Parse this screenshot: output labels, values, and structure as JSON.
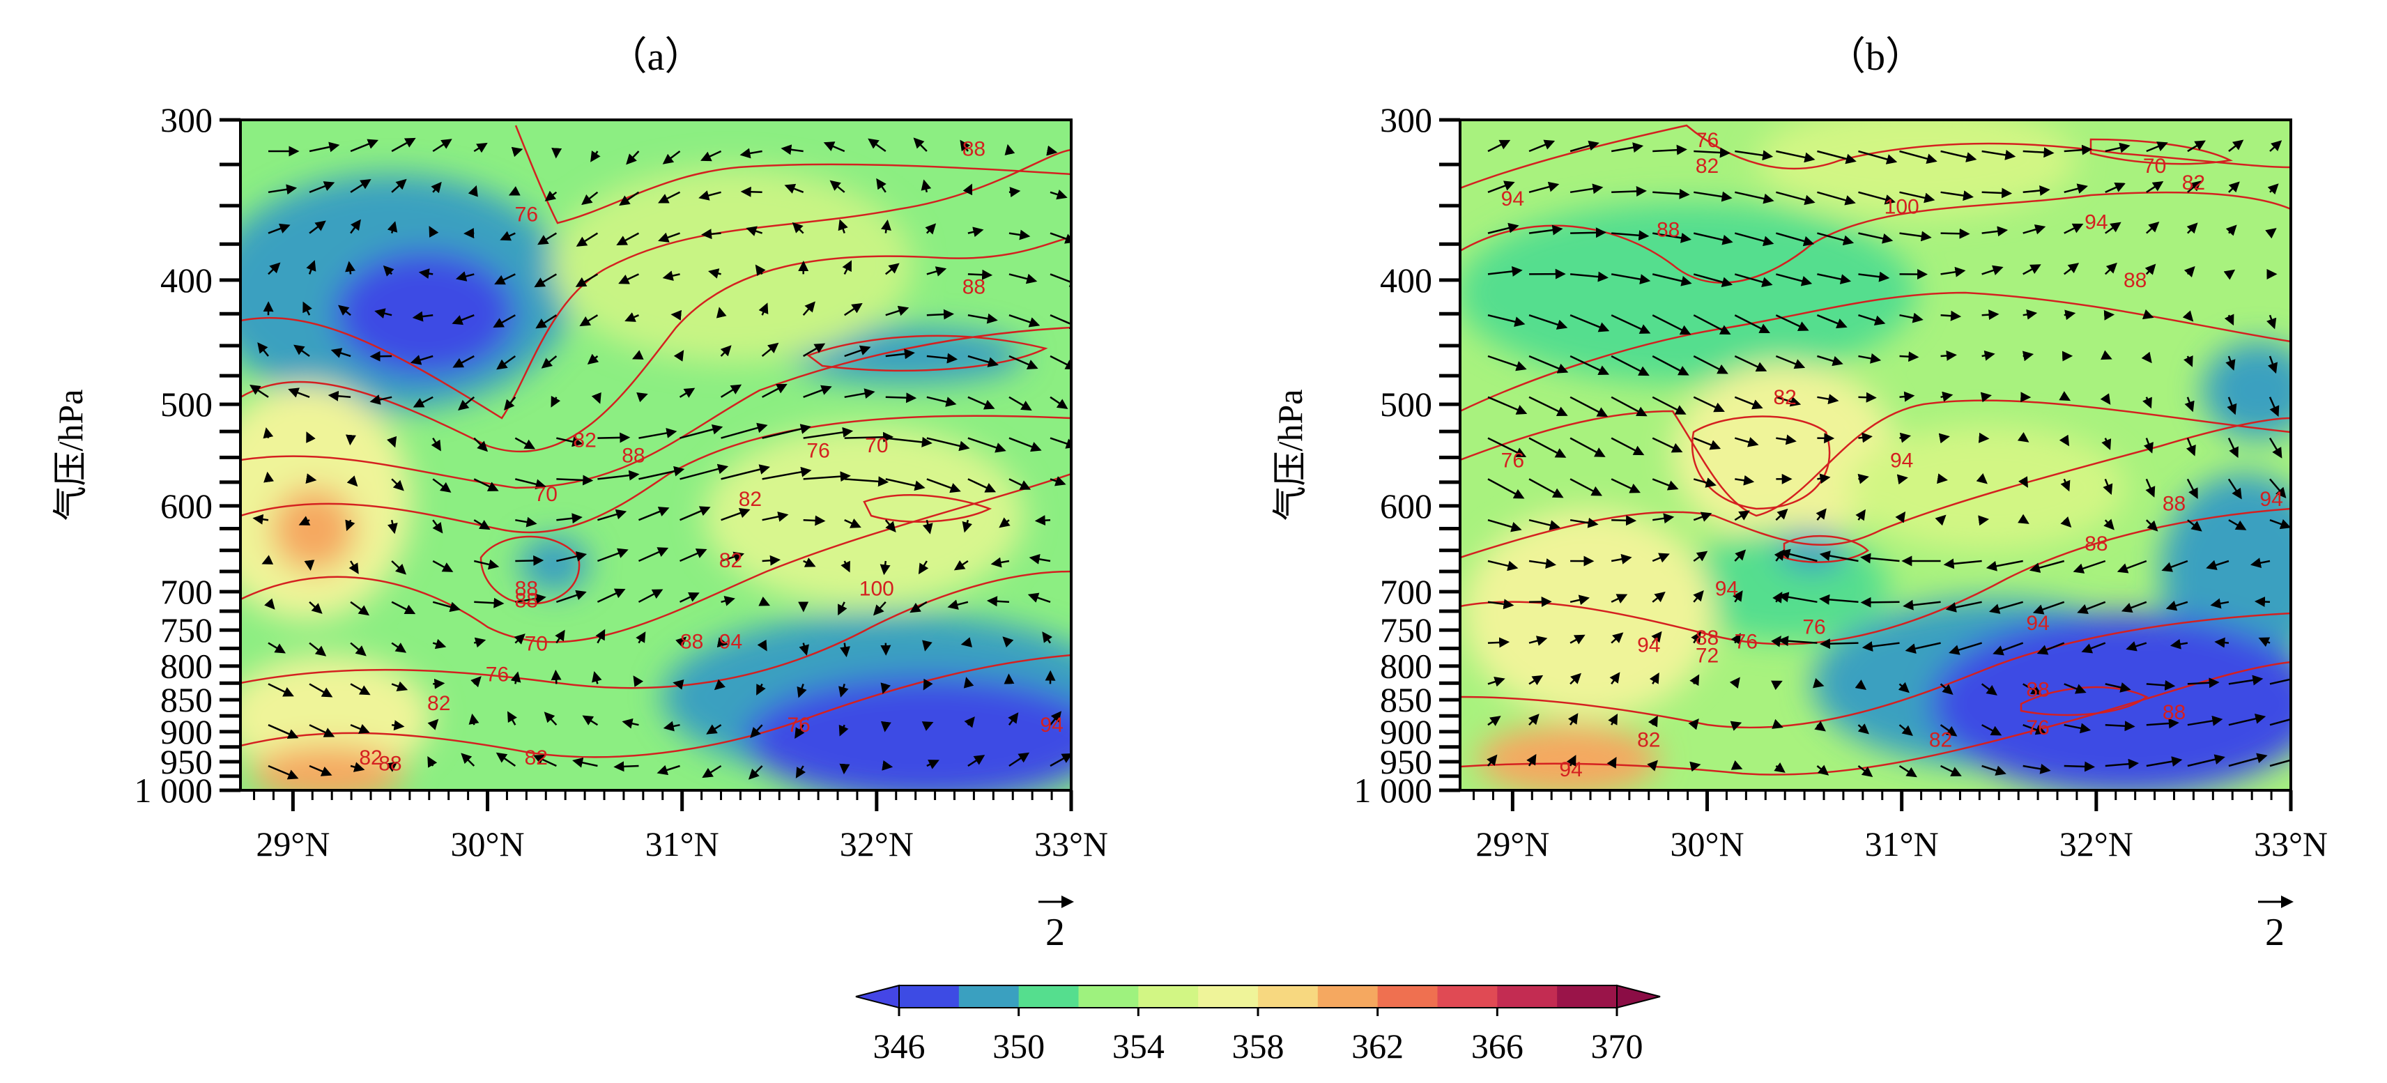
{
  "chart_data": [
    {
      "type": "heatmap",
      "panel": "a",
      "title": "（a）",
      "xlabel": "",
      "ylabel": "气压/hPa",
      "x_ticks": [
        "29°N",
        "30°N",
        "31°N",
        "32°N",
        "33°N"
      ],
      "x_tick_values": [
        29,
        30,
        31,
        32,
        33
      ],
      "xlim": [
        28.73,
        33
      ],
      "y_ticks": [
        "300",
        "400",
        "500",
        "600",
        "700",
        "750",
        "800",
        "850",
        "900",
        "950",
        "1 000"
      ],
      "y_tick_values": [
        300,
        400,
        500,
        600,
        700,
        750,
        800,
        850,
        900,
        950,
        1000
      ],
      "ylim": [
        1000,
        300
      ],
      "y_scale": "pressure-log",
      "contour_labels": [
        {
          "text": "76",
          "lat": 30.2,
          "p": 360
        },
        {
          "text": "88",
          "lat": 32.5,
          "p": 320
        },
        {
          "text": "88",
          "lat": 32.5,
          "p": 410
        },
        {
          "text": "82",
          "lat": 30.5,
          "p": 540
        },
        {
          "text": "88",
          "lat": 30.75,
          "p": 555
        },
        {
          "text": "76",
          "lat": 31.7,
          "p": 550
        },
        {
          "text": "70",
          "lat": 32.0,
          "p": 545
        },
        {
          "text": "70",
          "lat": 30.3,
          "p": 595
        },
        {
          "text": "82",
          "lat": 31.35,
          "p": 600
        },
        {
          "text": "82",
          "lat": 31.25,
          "p": 670
        },
        {
          "text": "88",
          "lat": 30.2,
          "p": 705
        },
        {
          "text": "88",
          "lat": 30.2,
          "p": 720
        },
        {
          "text": "100",
          "lat": 32.0,
          "p": 705
        },
        {
          "text": "70",
          "lat": 30.25,
          "p": 778
        },
        {
          "text": "88",
          "lat": 31.05,
          "p": 775
        },
        {
          "text": "94",
          "lat": 31.25,
          "p": 775
        },
        {
          "text": "76",
          "lat": 30.05,
          "p": 822
        },
        {
          "text": "82",
          "lat": 29.75,
          "p": 866
        },
        {
          "text": "76",
          "lat": 31.6,
          "p": 900
        },
        {
          "text": "82",
          "lat": 30.25,
          "p": 955
        },
        {
          "text": "94",
          "lat": 32.9,
          "p": 900
        },
        {
          "text": "82",
          "lat": 29.4,
          "p": 955
        },
        {
          "text": "88",
          "lat": 29.5,
          "p": 965
        }
      ],
      "vector_reference": {
        "label": "2"
      }
    },
    {
      "type": "heatmap",
      "panel": "b",
      "title": "（b）",
      "xlabel": "",
      "ylabel": "气压/hPa",
      "x_ticks": [
        "29°N",
        "30°N",
        "31°N",
        "32°N",
        "33°N"
      ],
      "x_tick_values": [
        29,
        30,
        31,
        32,
        33
      ],
      "xlim": [
        28.73,
        33
      ],
      "y_ticks": [
        "300",
        "400",
        "500",
        "600",
        "700",
        "750",
        "800",
        "850",
        "900",
        "950",
        "1 000"
      ],
      "y_tick_values": [
        300,
        400,
        500,
        600,
        700,
        750,
        800,
        850,
        900,
        950,
        1000
      ],
      "ylim": [
        1000,
        300
      ],
      "y_scale": "pressure-log",
      "contour_labels": [
        {
          "text": "76",
          "lat": 30.0,
          "p": 315
        },
        {
          "text": "82",
          "lat": 30.0,
          "p": 330
        },
        {
          "text": "94",
          "lat": 29.0,
          "p": 350
        },
        {
          "text": "100",
          "lat": 31.0,
          "p": 355
        },
        {
          "text": "88",
          "lat": 29.8,
          "p": 370
        },
        {
          "text": "70",
          "lat": 32.3,
          "p": 330
        },
        {
          "text": "82",
          "lat": 32.5,
          "p": 340
        },
        {
          "text": "94",
          "lat": 32.0,
          "p": 365
        },
        {
          "text": "88",
          "lat": 32.2,
          "p": 405
        },
        {
          "text": "82",
          "lat": 30.4,
          "p": 500
        },
        {
          "text": "94",
          "lat": 31.0,
          "p": 560
        },
        {
          "text": "76",
          "lat": 29.0,
          "p": 560
        },
        {
          "text": "88",
          "lat": 32.4,
          "p": 605
        },
        {
          "text": "94",
          "lat": 32.9,
          "p": 600
        },
        {
          "text": "88",
          "lat": 32.0,
          "p": 650
        },
        {
          "text": "94",
          "lat": 30.1,
          "p": 705
        },
        {
          "text": "76",
          "lat": 30.2,
          "p": 775
        },
        {
          "text": "76",
          "lat": 30.55,
          "p": 755
        },
        {
          "text": "88",
          "lat": 30.0,
          "p": 770
        },
        {
          "text": "72",
          "lat": 30.0,
          "p": 795
        },
        {
          "text": "94",
          "lat": 29.7,
          "p": 780
        },
        {
          "text": "94",
          "lat": 31.7,
          "p": 750
        },
        {
          "text": "88",
          "lat": 31.7,
          "p": 845
        },
        {
          "text": "88",
          "lat": 32.4,
          "p": 880
        },
        {
          "text": "76",
          "lat": 31.7,
          "p": 905
        },
        {
          "text": "82",
          "lat": 29.7,
          "p": 925
        },
        {
          "text": "82",
          "lat": 31.2,
          "p": 925
        },
        {
          "text": "94",
          "lat": 29.3,
          "p": 975
        }
      ],
      "vector_reference": {
        "label": "2"
      }
    }
  ],
  "colorbar": {
    "tick_labels": [
      "346",
      "350",
      "354",
      "358",
      "362",
      "366",
      "370"
    ],
    "tick_values": [
      346,
      350,
      354,
      358,
      362,
      366,
      370
    ],
    "boundaries": [
      346,
      348,
      350,
      352,
      354,
      356,
      358,
      360,
      362,
      364,
      366,
      368,
      370
    ],
    "colors": [
      "#3d4be4",
      "#3aa0c0",
      "#55de8e",
      "#9ef27e",
      "#d2f684",
      "#eff499",
      "#f7d880",
      "#f5a860",
      "#ef7050",
      "#e04a54",
      "#c32c52",
      "#9a1449"
    ],
    "under_color": "#4446e6",
    "over_color": "#8b0d45",
    "extend": "both"
  }
}
